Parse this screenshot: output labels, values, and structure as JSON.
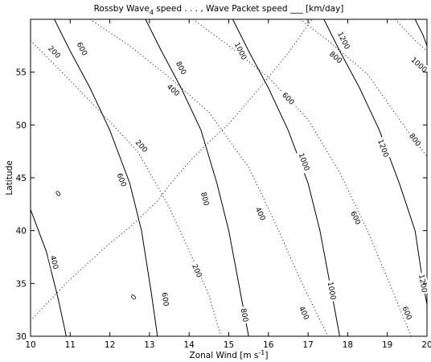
{
  "chart_data": {
    "type": "contour",
    "title_parts": {
      "prefix": "Rossby Wave",
      "subscript": "4",
      "middle": " speed . . . ,  Wave Packet speed ",
      "line_sample": "___",
      "suffix": "  [km/day]"
    },
    "xlabel": {
      "text": "Zonal Wind [m s",
      "superscript": "-1",
      "end": "]"
    },
    "ylabel": "Latitude",
    "xlim": [
      10,
      20
    ],
    "ylim": [
      30,
      60
    ],
    "xticks": [
      10,
      11,
      12,
      13,
      14,
      15,
      16,
      17,
      18,
      19,
      20
    ],
    "yticks": [
      30,
      35,
      40,
      45,
      50,
      55
    ],
    "grid": false,
    "series": [
      {
        "name": "Rossby Wave speed",
        "style": "dotted",
        "contours": [
          {
            "level": 0,
            "points": [
              [
                10.0,
                31.5
              ],
              [
                11.0,
                35.4
              ],
              [
                12.0,
                38.8
              ],
              [
                12.5,
                40.3
              ],
              [
                13.2,
                42.8
              ],
              [
                13.5,
                44.3
              ],
              [
                14.0,
                46.5
              ],
              [
                14.5,
                48.4
              ],
              [
                15.0,
                50.1
              ],
              [
                15.8,
                53.6
              ],
              [
                16.5,
                56.8
              ],
              [
                17.1,
                60.0
              ]
            ],
            "label_at": [
              [
                10.7,
                43.5
              ],
              [
                12.6,
                33.7
              ]
            ]
          },
          {
            "level": 200,
            "points": [
              [
                10.0,
                58.0
              ],
              [
                11.0,
                54.2
              ],
              [
                12.0,
                50.3
              ],
              [
                12.7,
                47.5
              ],
              [
                13.5,
                42.2
              ],
              [
                14.0,
                38.1
              ],
              [
                14.5,
                33.9
              ],
              [
                14.8,
                30.0
              ]
            ],
            "label_at": [
              [
                10.6,
                56.9
              ],
              [
                12.8,
                48.0
              ],
              [
                14.2,
                36.2
              ]
            ]
          },
          {
            "level": 400,
            "points": [
              [
                11.5,
                60.0
              ],
              [
                12.5,
                57.5
              ],
              [
                13.5,
                54.5
              ],
              [
                14.5,
                51.2
              ],
              [
                15.5,
                46.0
              ],
              [
                16.2,
                40.5
              ],
              [
                16.8,
                35.4
              ],
              [
                17.5,
                30.0
              ]
            ],
            "label_at": [
              [
                13.6,
                53.3
              ],
              [
                15.8,
                41.6
              ],
              [
                16.9,
                32.2
              ]
            ]
          },
          {
            "level": 600,
            "points": [
              [
                14.1,
                60.0
              ],
              [
                15.0,
                57.5
              ],
              [
                16.0,
                54.5
              ],
              [
                17.0,
                50.5
              ],
              [
                17.8,
                45.5
              ],
              [
                18.5,
                40.0
              ],
              [
                19.0,
                35.5
              ],
              [
                19.6,
                30.0
              ]
            ],
            "label_at": [
              [
                16.5,
                52.5
              ],
              [
                18.2,
                41.2
              ],
              [
                19.5,
                32.2
              ]
            ]
          },
          {
            "level": 800,
            "points": [
              [
                16.8,
                60.0
              ],
              [
                17.5,
                58.0
              ],
              [
                18.5,
                54.8
              ],
              [
                19.5,
                49.5
              ],
              [
                20.0,
                47.0
              ]
            ],
            "label_at": [
              [
                17.7,
                56.4
              ],
              [
                19.7,
                48.6
              ]
            ]
          },
          {
            "level": 1000,
            "points": [
              [
                19.2,
                60.0
              ],
              [
                19.7,
                58.0
              ],
              [
                20.0,
                57.0
              ]
            ],
            "label_at": [
              [
                19.8,
                55.7
              ]
            ]
          }
        ]
      },
      {
        "name": "Wave Packet speed",
        "style": "solid",
        "contours": [
          {
            "level": 400,
            "points": [
              [
                10.0,
                42.0
              ],
              [
                10.4,
                38.0
              ],
              [
                10.7,
                33.5
              ],
              [
                10.9,
                30.0
              ]
            ],
            "label_at": [
              [
                10.6,
                37.0
              ]
            ]
          },
          {
            "level": 600,
            "points": [
              [
                10.6,
                60.0
              ],
              [
                11.0,
                57.0
              ],
              [
                11.5,
                53.5
              ],
              [
                12.0,
                49.5
              ],
              [
                12.5,
                44.5
              ],
              [
                12.8,
                40.0
              ],
              [
                13.05,
                34.0
              ],
              [
                13.2,
                30.0
              ]
            ],
            "label_at": [
              [
                11.3,
                57.2
              ],
              [
                12.3,
                44.8
              ],
              [
                13.4,
                33.5
              ]
            ]
          },
          {
            "level": 800,
            "points": [
              [
                12.9,
                60.0
              ],
              [
                13.3,
                57.0
              ],
              [
                13.8,
                53.5
              ],
              [
                14.3,
                49.5
              ],
              [
                14.7,
                44.5
              ],
              [
                15.0,
                40.0
              ],
              [
                15.3,
                34.0
              ],
              [
                15.5,
                30.0
              ]
            ],
            "label_at": [
              [
                13.8,
                55.4
              ],
              [
                14.4,
                43.0
              ],
              [
                15.4,
                32.0
              ]
            ]
          },
          {
            "level": 1000,
            "points": [
              [
                15.1,
                60.0
              ],
              [
                15.5,
                57.0
              ],
              [
                16.0,
                53.5
              ],
              [
                16.5,
                49.5
              ],
              [
                17.0,
                44.5
              ],
              [
                17.3,
                40.0
              ],
              [
                17.6,
                34.0
              ],
              [
                17.8,
                30.0
              ]
            ],
            "label_at": [
              [
                15.3,
                57.0
              ],
              [
                16.9,
                46.5
              ],
              [
                17.6,
                34.3
              ]
            ]
          },
          {
            "level": 1200,
            "points": [
              [
                17.4,
                60.0
              ],
              [
                17.8,
                57.0
              ],
              [
                18.3,
                53.5
              ],
              [
                18.8,
                49.5
              ],
              [
                19.3,
                44.5
              ],
              [
                19.7,
                40.0
              ],
              [
                19.9,
                35.0
              ],
              [
                20.0,
                33.0
              ]
            ],
            "label_at": [
              [
                17.9,
                58.0
              ],
              [
                18.9,
                47.8
              ],
              [
                19.9,
                35.0
              ]
            ]
          },
          {
            "level": 1400,
            "points": [
              [
                19.7,
                60.0
              ],
              [
                19.9,
                58.5
              ],
              [
                20.0,
                57.5
              ]
            ],
            "label_at": []
          }
        ]
      }
    ]
  }
}
